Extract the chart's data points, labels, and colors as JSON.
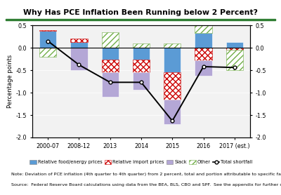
{
  "title": "Why Has PCE Inflation Been Running below 2 Percent?",
  "categories": [
    "2000-07",
    "2008-12",
    "2013",
    "2014",
    "2015",
    "2016",
    "2017 (est.)"
  ],
  "food_energy": [
    0.37,
    0.12,
    -0.27,
    -0.27,
    -0.55,
    0.33,
    0.12
  ],
  "import_prices": [
    0.03,
    0.08,
    -0.28,
    -0.28,
    -0.6,
    -0.28,
    -0.05
  ],
  "slack": [
    0.0,
    -0.5,
    -0.55,
    -0.38,
    -0.55,
    -0.35,
    0.0
  ],
  "other": [
    -0.2,
    0.0,
    0.35,
    0.1,
    0.1,
    0.35,
    -0.45
  ],
  "total_shortfall": [
    0.15,
    -0.38,
    -0.77,
    -0.77,
    -1.63,
    -0.42,
    -0.44
  ],
  "ylim": [
    -2.0,
    0.5
  ],
  "yticks": [
    -2.0,
    -1.5,
    -1.0,
    -0.5,
    0.0,
    0.5
  ],
  "ylabel": "Percentage points",
  "color_food": "#5b9bd5",
  "color_import": "#cc0000",
  "color_slack": "#b4a7d6",
  "color_other": "#70ad47",
  "note_line1": "Note: Deviation of PCE inflation (4th quarter to 4th quarter) from 2 percent, total and portion attributable to specific factors.",
  "note_line2": "Source:  Federal Reserve Board calculations using data from the BEA, BLS, CBO and SPF.  See the appendix for further details.",
  "title_bar_color": "#2e7d32",
  "bg_color": "#f2f2f2"
}
